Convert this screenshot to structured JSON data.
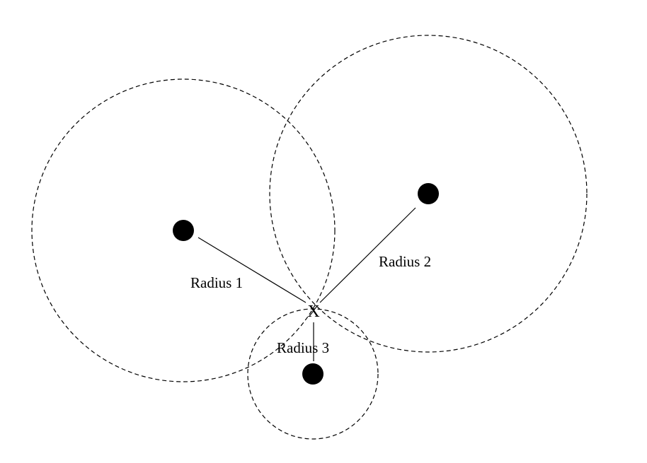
{
  "diagram": {
    "labels": {
      "radius_1": "Radius 1",
      "radius_2": "Radius 2",
      "radius_3": "Radius 3",
      "intersection_point": "X"
    },
    "style": {
      "stroke_color": "#000000",
      "background_color": "#ffffff"
    }
  }
}
